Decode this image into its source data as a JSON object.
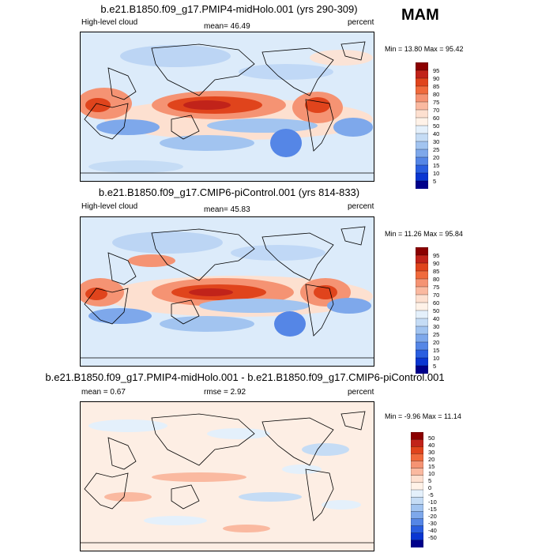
{
  "header": {
    "season": "MAM"
  },
  "chart_data": [
    {
      "type": "heatmap",
      "title": "b.e21.B1850.f09_g17.PMIP4-midHolo.001 (yrs 290-309)",
      "variable_label": "High-level cloud",
      "mean_text": "mean=  46.49",
      "mean": 46.49,
      "units": "percent",
      "minmax_text": "Min =  13.80 Max =  95.42",
      "min": 13.8,
      "max": 95.42,
      "colorbar": {
        "labels": [
          "95",
          "90",
          "85",
          "80",
          "75",
          "70",
          "60",
          "50",
          "40",
          "30",
          "25",
          "20",
          "15",
          "10",
          "5"
        ],
        "colors": [
          "#8b0000",
          "#c1231a",
          "#e0441c",
          "#f06a3c",
          "#f59373",
          "#fab9a0",
          "#fde0d0",
          "#fff2e8",
          "#e4f0fb",
          "#c5dcf5",
          "#a2c4f0",
          "#7ea8eb",
          "#5586e6",
          "#2a5ee0",
          "#0a36d2",
          "#00008b"
        ]
      }
    },
    {
      "type": "heatmap",
      "title": "b.e21.B1850.f09_g17.CMIP6-piControl.001 (yrs 814-833)",
      "variable_label": "High-level cloud",
      "mean_text": "mean=  45.83",
      "mean": 45.83,
      "units": "percent",
      "minmax_text": "Min =  11.26 Max =  95.84",
      "min": 11.26,
      "max": 95.84,
      "colorbar": {
        "labels": [
          "95",
          "90",
          "85",
          "80",
          "75",
          "70",
          "60",
          "50",
          "40",
          "30",
          "25",
          "20",
          "15",
          "10",
          "5"
        ],
        "colors": [
          "#8b0000",
          "#c1231a",
          "#e0441c",
          "#f06a3c",
          "#f59373",
          "#fab9a0",
          "#fde0d0",
          "#fff2e8",
          "#e4f0fb",
          "#c5dcf5",
          "#a2c4f0",
          "#7ea8eb",
          "#5586e6",
          "#2a5ee0",
          "#0a36d2",
          "#00008b"
        ]
      }
    },
    {
      "type": "heatmap",
      "title": "b.e21.B1850.f09_g17.PMIP4-midHolo.001 - b.e21.B1850.f09_g17.CMIP6-piControl.001",
      "mean_text": "mean =  0.67",
      "mean": 0.67,
      "rmse_text": "rmse =  2.92",
      "rmse": 2.92,
      "units": "percent",
      "minmax_text": "Min =  -9.96 Max =  11.14",
      "min": -9.96,
      "max": 11.14,
      "colorbar": {
        "labels": [
          "50",
          "40",
          "30",
          "20",
          "15",
          "10",
          "5",
          "0",
          "-5",
          "-10",
          "-15",
          "-20",
          "-30",
          "-40",
          "-50"
        ],
        "colors": [
          "#8b0000",
          "#c1231a",
          "#e0441c",
          "#f06a3c",
          "#f59373",
          "#fab9a0",
          "#fde0d0",
          "#fff2e8",
          "#e4f0fb",
          "#c5dcf5",
          "#a2c4f0",
          "#7ea8eb",
          "#5586e6",
          "#2a5ee0",
          "#0a36d2",
          "#00008b"
        ]
      }
    }
  ]
}
